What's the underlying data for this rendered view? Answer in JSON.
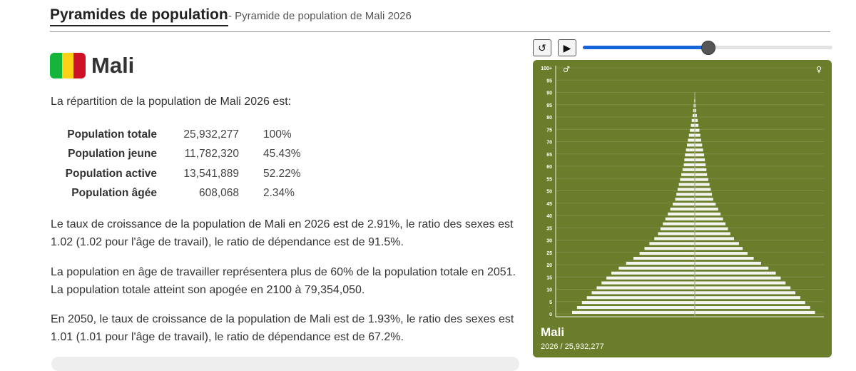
{
  "header": {
    "title": "Pyramides de population",
    "subtitle": "- Pyramide de population de Mali 2026"
  },
  "country": {
    "name": "Mali",
    "flag_colors": [
      "#14b53a",
      "#fcd116",
      "#ce1126"
    ]
  },
  "intro": "La répartition de la population de Mali 2026 est:",
  "stats": [
    {
      "label": "Population totale",
      "value": "25,932,277",
      "pct": "100%"
    },
    {
      "label": "Population jeune",
      "value": "11,782,320",
      "pct": "45.43%"
    },
    {
      "label": "Population active",
      "value": "13,541,889",
      "pct": "52.22%"
    },
    {
      "label": "Population âgée",
      "value": "608,068",
      "pct": "2.34%"
    }
  ],
  "paragraphs": [
    "Le taux de croissance de la population de Mali en 2026 est de 2.91%, le ratio des sexes est 1.02 (1.02 pour l'âge de travail), le ratio de dépendance est de 91.5%.",
    "La population en âge de travailler représentera plus de 60% de la population totale en 2051. La population totale atteint son apogée en 2100 à 79,354,050.",
    "En 2050, le taux de croissance de la population de Mali est de 1.93%, le ratio des sexes est 1.01 (1.01 pour l'âge de travail), le ratio de dépendance est de 67.2%."
  ],
  "controls": {
    "reset_icon": "reset-icon",
    "play_icon": "play-icon",
    "reset_glyph": "↺",
    "play_glyph": "▶",
    "slider_fraction": 0.5
  },
  "panel": {
    "country": "Mali",
    "year_line": "2026 / 25,932,277",
    "male_symbol": "♂",
    "female_symbol": "♀",
    "background": "#6a7d2b"
  },
  "chart_data": {
    "type": "bar",
    "orientation": "horizontal-pyramid",
    "age_min": 0,
    "age_max": 100,
    "ytick_labels": [
      "0",
      "5",
      "10",
      "15",
      "20",
      "25",
      "30",
      "35",
      "40",
      "45",
      "50",
      "55",
      "60",
      "65",
      "70",
      "75",
      "80",
      "85",
      "90",
      "95",
      "100+"
    ],
    "grid": true,
    "ages": [
      0,
      2,
      4,
      6,
      8,
      10,
      12,
      14,
      16,
      18,
      20,
      22,
      24,
      26,
      28,
      30,
      32,
      34,
      36,
      38,
      40,
      42,
      44,
      46,
      48,
      50,
      52,
      54,
      56,
      58,
      60,
      62,
      64,
      66,
      68,
      70,
      72,
      74,
      76,
      78,
      80,
      82,
      84,
      86,
      88
    ],
    "male": [
      1.0,
      0.96,
      0.92,
      0.88,
      0.84,
      0.8,
      0.76,
      0.72,
      0.68,
      0.62,
      0.56,
      0.5,
      0.45,
      0.41,
      0.37,
      0.33,
      0.3,
      0.28,
      0.26,
      0.24,
      0.22,
      0.2,
      0.18,
      0.16,
      0.15,
      0.14,
      0.13,
      0.12,
      0.11,
      0.1,
      0.09,
      0.085,
      0.08,
      0.072,
      0.064,
      0.056,
      0.048,
      0.04,
      0.032,
      0.025,
      0.018,
      0.013,
      0.009,
      0.006,
      0.003
    ],
    "female": [
      0.98,
      0.94,
      0.9,
      0.86,
      0.82,
      0.78,
      0.74,
      0.7,
      0.66,
      0.6,
      0.54,
      0.48,
      0.43,
      0.39,
      0.36,
      0.32,
      0.29,
      0.27,
      0.25,
      0.23,
      0.21,
      0.19,
      0.17,
      0.15,
      0.14,
      0.13,
      0.12,
      0.11,
      0.1,
      0.095,
      0.088,
      0.082,
      0.076,
      0.068,
      0.06,
      0.052,
      0.045,
      0.038,
      0.03,
      0.024,
      0.017,
      0.012,
      0.008,
      0.005,
      0.003
    ]
  }
}
